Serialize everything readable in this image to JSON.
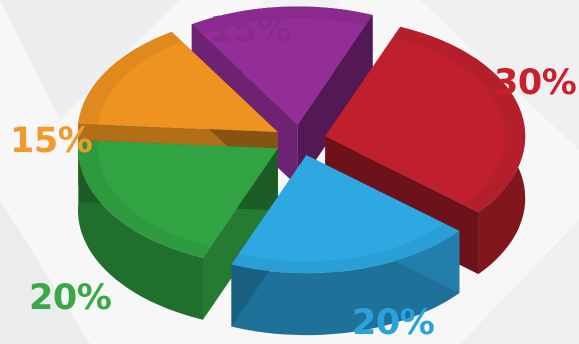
{
  "chart_data": {
    "type": "pie",
    "style": "3d exploded",
    "slices": [
      {
        "value": 15,
        "label": "15%",
        "color": "#8a2a8e"
      },
      {
        "value": 30,
        "label": "30%",
        "color": "#b51e2b"
      },
      {
        "value": 20,
        "label": "20%",
        "color": "#2a9fd6"
      },
      {
        "value": 20,
        "label": "20%",
        "color": "#2e9a3e"
      },
      {
        "value": 15,
        "label": "15%",
        "color": "#e08a1e"
      }
    ],
    "label_colors": [
      "#8a2a8e",
      "#c8202e",
      "#2aa3dc",
      "#3aa845",
      "#f29a2c"
    ]
  }
}
